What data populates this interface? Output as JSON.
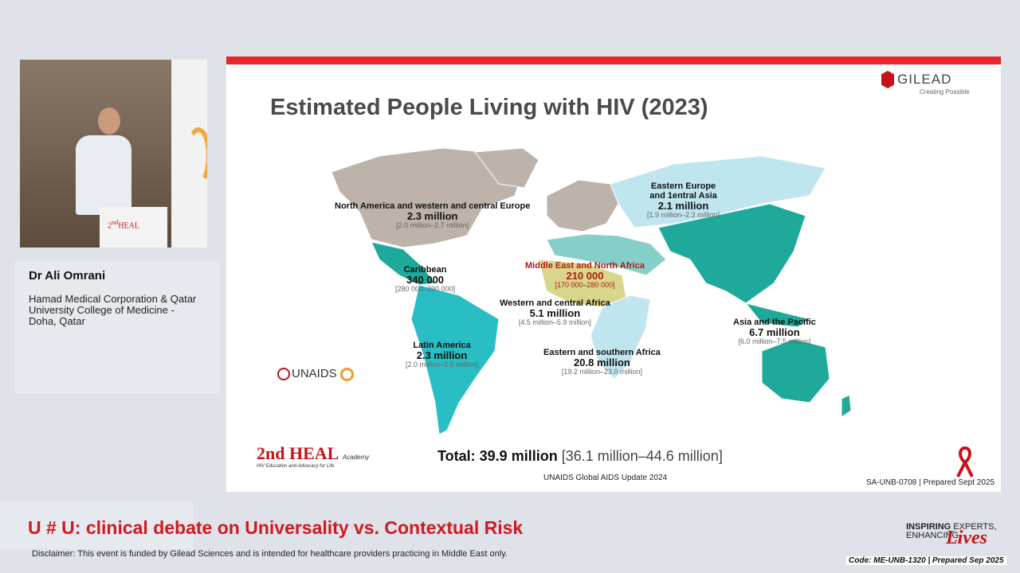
{
  "speaker": {
    "name": "Dr Ali Omrani",
    "affiliation": "Hamad Medical Corporation & Qatar University College of Medicine - Doha, Qatar"
  },
  "slide": {
    "title": "Estimated People Living with HIV (2023)",
    "brand": "GILEAD",
    "brand_tagline": "Creating Possible",
    "regions": [
      {
        "name": "North America and western and central Europe",
        "value": "2.3 million",
        "range": "[2.0 million–2.7 million]"
      },
      {
        "name": "Eastern Europe",
        "name2": "and 1entral Asia",
        "value": "2.1 million",
        "range": "[1.9 million–2.3 million]"
      },
      {
        "name": "Caribbean",
        "value": "340 000",
        "range": "[280 000–390 000]"
      },
      {
        "name": "Middle East and North Africa",
        "value": "210 000",
        "range": "[170 000–280 000]"
      },
      {
        "name": "Western and central Africa",
        "value": "5.1 million",
        "range": "[4.5 million–5.9 million]"
      },
      {
        "name": "Asia and the Pacific",
        "value": "6.7 million",
        "range": "[6.0 million–7.5 million]"
      },
      {
        "name": "Latin America",
        "value": "2.3 million",
        "range": "[2.0 million–2.5 million]"
      },
      {
        "name": "Eastern and southern Africa",
        "value": "20.8 million",
        "range": "[19.2 million–23.0 million]"
      }
    ],
    "unaids": "UNAIDS",
    "total_label": "Total: 39.9 million",
    "total_range": "[36.1 million–44.6 million]",
    "source": "UNAIDS Global AIDS Update 2024",
    "code": "SA-UNB-0708 | Prepared Sept 2025",
    "heal_logo": "2nd HEAL",
    "heal_academy": "Academy",
    "heal_sub": "HIV Education and Advocacy for Life"
  },
  "footer": {
    "debate_title": "U # U: clinical debate on Universality vs. Contextual Risk",
    "disclaimer": "Disclaimer: This event is funded by Gilead Sciences and is intended for healthcare providers practicing in Middle East only.",
    "inspiring": "INSPIRING",
    "experts": "EXPERTS,",
    "enhancing": "ENHANCING",
    "lives": "Lives",
    "code": "Code: ME-UNB-1320 | Prepared Sep 2025"
  },
  "colors": {
    "accent_red": "#e8262b",
    "teal_dark": "#1fa99a",
    "teal": "#29bec4",
    "light_blue": "#bfe6ee",
    "tan": "#bdb3aa",
    "khaki": "#d8d68a"
  },
  "icons": [
    "gilead-logo-icon",
    "unaids-logo-icon",
    "red-ribbon-icon",
    "heal-logo-icon"
  ]
}
